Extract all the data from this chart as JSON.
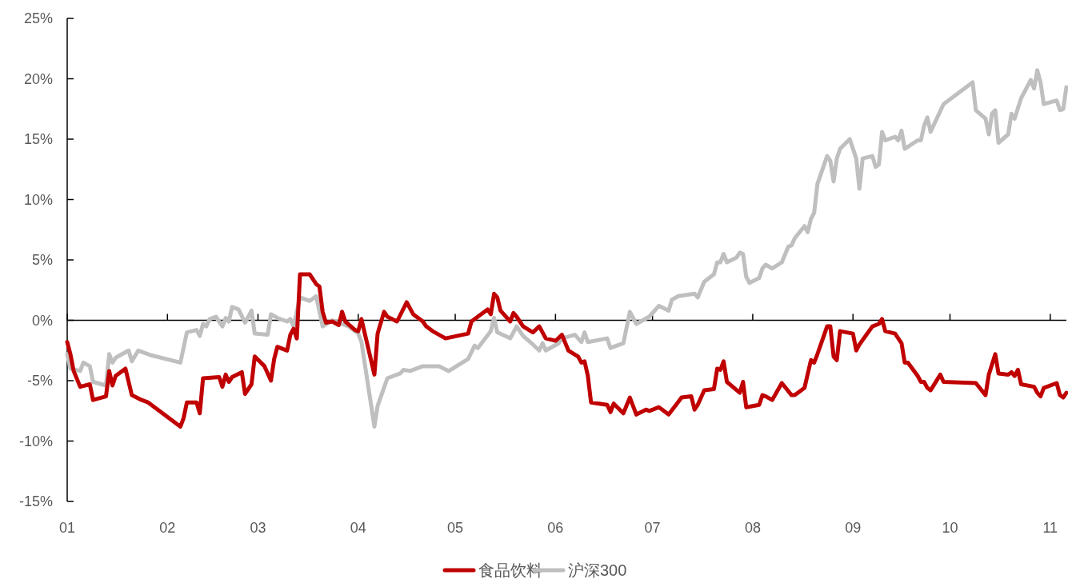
{
  "chart_data": {
    "type": "line",
    "legend": "bottom",
    "xlim": [
      "--01-01",
      "--11-06"
    ],
    "xticks": [
      {
        "value": "--01-01",
        "label": "01"
      },
      {
        "value": "--02-01",
        "label": "02"
      },
      {
        "value": "--03-01",
        "label": "03"
      },
      {
        "value": "--04-01",
        "label": "04"
      },
      {
        "value": "--05-01",
        "label": "05"
      },
      {
        "value": "--06-01",
        "label": "06"
      },
      {
        "value": "--07-01",
        "label": "07"
      },
      {
        "value": "--08-01",
        "label": "08"
      },
      {
        "value": "--09-01",
        "label": "09"
      },
      {
        "value": "--10-01",
        "label": "10"
      },
      {
        "value": "--11-01",
        "label": "11"
      }
    ],
    "ylim": [
      -15,
      25
    ],
    "yticks": [
      {
        "value": -15,
        "label": "-15%"
      },
      {
        "value": -10,
        "label": "-10%"
      },
      {
        "value": -5,
        "label": "-5%"
      },
      {
        "value": 0,
        "label": "0%"
      },
      {
        "value": 5,
        "label": "5%"
      },
      {
        "value": 10,
        "label": "10%"
      },
      {
        "value": 15,
        "label": "15%"
      },
      {
        "value": 20,
        "label": "20%"
      },
      {
        "value": 25,
        "label": "25%"
      }
    ],
    "series": [
      {
        "name": "食品饮料",
        "color": "#c00000",
        "x": [
          "--01-01",
          "--01-02",
          "--01-03",
          "--01-05",
          "--01-08",
          "--01-09",
          "--01-13",
          "--01-14",
          "--01-15",
          "--01-16",
          "--01-19",
          "--01-21",
          "--01-24",
          "--01-26",
          "--02-05",
          "--02-06",
          "--02-07",
          "--02-10",
          "--02-11",
          "--02-12",
          "--02-17",
          "--02-18",
          "--02-19",
          "--02-20",
          "--02-21",
          "--02-24",
          "--02-25",
          "--02-27",
          "--02-28",
          "--03-03",
          "--03-05",
          "--03-06",
          "--03-07",
          "--03-10",
          "--03-11",
          "--03-12",
          "--03-13",
          "--03-14",
          "--03-17",
          "--03-19",
          "--03-20",
          "--03-21",
          "--03-22",
          "--03-24",
          "--03-26",
          "--03-27",
          "--03-28",
          "--03-31",
          "--04-01",
          "--04-02",
          "--04-06",
          "--04-07",
          "--04-09",
          "--04-10",
          "--04-13",
          "--04-16",
          "--04-18",
          "--04-21",
          "--04-22",
          "--04-24",
          "--04-28",
          "--05-05",
          "--05-06",
          "--05-08",
          "--05-11",
          "--05-12",
          "--05-13",
          "--05-14",
          "--05-15",
          "--05-18",
          "--05-19",
          "--05-20",
          "--05-22",
          "--05-25",
          "--05-27",
          "--05-29",
          "--06-01",
          "--06-03",
          "--06-05",
          "--06-08",
          "--06-09",
          "--06-10",
          "--06-11",
          "--06-12",
          "--06-17",
          "--06-18",
          "--06-19",
          "--06-22",
          "--06-24",
          "--06-26",
          "--06-29",
          "--06-30",
          "--07-03",
          "--07-06",
          "--07-08",
          "--07-10",
          "--07-13",
          "--07-14",
          "--07-15",
          "--07-17",
          "--07-20",
          "--07-21",
          "--07-22",
          "--07-23",
          "--07-24",
          "--07-28",
          "--07-29",
          "--07-30",
          "--08-03",
          "--08-04",
          "--08-05",
          "--08-07",
          "--08-10",
          "--08-13",
          "--08-14",
          "--08-17",
          "--08-19",
          "--08-20",
          "--08-21",
          "--08-24",
          "--08-25",
          "--08-26",
          "--08-27",
          "--08-28",
          "--09-01",
          "--09-02",
          "--09-03",
          "--09-07",
          "--09-09",
          "--09-10",
          "--09-11",
          "--09-14",
          "--09-16",
          "--09-17",
          "--09-18",
          "--09-21",
          "--09-22",
          "--09-23",
          "--09-24",
          "--09-25",
          "--09-28",
          "--09-29",
          "--10-09",
          "--10-12",
          "--10-13",
          "--10-15",
          "--10-16",
          "--10-19",
          "--10-20",
          "--10-21",
          "--10-22",
          "--10-23",
          "--10-27",
          "--10-28",
          "--10-29",
          "--10-30",
          "--11-03",
          "--11-04",
          "--11-05",
          "--11-06"
        ],
        "values": [
          -1.8,
          -2.8,
          -4.2,
          -5.5,
          -5.3,
          -6.6,
          -6.3,
          -4.2,
          -5.4,
          -4.6,
          -4.0,
          -6.2,
          -6.6,
          -6.8,
          -8.8,
          -8.1,
          -6.8,
          -6.8,
          -7.7,
          -4.8,
          -4.7,
          -5.5,
          -4.5,
          -5.1,
          -4.7,
          -4.3,
          -6.1,
          -5.3,
          -3.0,
          -3.8,
          -5.0,
          -3.2,
          -2.2,
          -2.5,
          -1.2,
          -0.7,
          -1.5,
          3.8,
          3.8,
          3.0,
          2.8,
          0.7,
          -0.2,
          -0.1,
          -0.4,
          0.7,
          -0.1,
          -0.8,
          -0.9,
          0.1,
          -4.5,
          -1.1,
          0.7,
          0.3,
          -0.1,
          1.5,
          0.5,
          -0.1,
          -0.5,
          -0.9,
          -1.5,
          -1.1,
          -0.1,
          0.3,
          0.9,
          0.5,
          2.2,
          1.9,
          0.8,
          -0.1,
          0.6,
          0.3,
          -0.5,
          -1.0,
          -0.5,
          -1.5,
          -1.7,
          -1.2,
          -2.5,
          -3.0,
          -3.5,
          -3.4,
          -4.6,
          -6.8,
          -7.0,
          -7.6,
          -6.9,
          -7.7,
          -6.4,
          -7.8,
          -7.4,
          -7.5,
          -7.2,
          -7.8,
          -7.1,
          -6.4,
          -6.3,
          -7.4,
          -7.0,
          -5.8,
          -5.7,
          -4.0,
          -4.1,
          -3.4,
          -5.1,
          -6.0,
          -5.1,
          -7.2,
          -7.0,
          -6.2,
          -6.3,
          -6.6,
          -5.2,
          -6.2,
          -6.2,
          -5.6,
          -3.3,
          -3.5,
          -2.8,
          -0.5,
          -0.5,
          -3.0,
          -3.3,
          -0.9,
          -1.1,
          -2.5,
          -2.0,
          -0.5,
          -0.3,
          0.1,
          -0.9,
          -1.1,
          -1.9,
          -3.5,
          -3.5,
          -4.6,
          -5.1,
          -5.1,
          -5.6,
          -5.8,
          -4.5,
          -5.1,
          -5.2,
          -6.2,
          -4.5,
          -2.8,
          -4.4,
          -4.5,
          -4.3,
          -4.6,
          -4.1,
          -5.3,
          -5.5,
          -6.0,
          -6.3,
          -5.6,
          -5.2,
          -6.2,
          -6.4,
          -6.0
        ]
      },
      {
        "name": "沪深300",
        "color": "#bfbfbf",
        "x": [
          "--01-01",
          "--01-02",
          "--01-05",
          "--01-06",
          "--01-08",
          "--01-09",
          "--01-13",
          "--01-14",
          "--01-15",
          "--01-16",
          "--01-20",
          "--01-21",
          "--01-23",
          "--01-27",
          "--02-05",
          "--02-07",
          "--02-10",
          "--02-11",
          "--02-12",
          "--02-13",
          "--02-14",
          "--02-16",
          "--02-18",
          "--02-19",
          "--02-20",
          "--02-21",
          "--02-23",
          "--02-25",
          "--02-27",
          "--02-28",
          "--03-04",
          "--03-05",
          "--03-07",
          "--03-10",
          "--03-11",
          "--03-12",
          "--03-14",
          "--03-17",
          "--03-19",
          "--03-21",
          "--03-24",
          "--03-27",
          "--03-29",
          "--03-31",
          "--04-01",
          "--04-02",
          "--04-06",
          "--04-07",
          "--04-10",
          "--04-14",
          "--04-15",
          "--04-17",
          "--04-21",
          "--04-23",
          "--04-26",
          "--04-29",
          "--05-05",
          "--05-07",
          "--05-08",
          "--05-12",
          "--05-13",
          "--05-14",
          "--05-18",
          "--05-20",
          "--05-22",
          "--05-25",
          "--05-27",
          "--05-28",
          "--05-29",
          "--06-02",
          "--06-03",
          "--06-07",
          "--06-09",
          "--06-10",
          "--06-11",
          "--06-17",
          "--06-18",
          "--06-22",
          "--06-24",
          "--06-26",
          "--06-30",
          "--07-03",
          "--07-06",
          "--07-07",
          "--07-09",
          "--07-14",
          "--07-15",
          "--07-17",
          "--07-20",
          "--07-21",
          "--07-22",
          "--07-23",
          "--07-24",
          "--07-27",
          "--07-28",
          "--07-29",
          "--07-30",
          "--07-31",
          "--08-03",
          "--08-04",
          "--08-05",
          "--08-07",
          "--08-10",
          "--08-12",
          "--08-13",
          "--08-14",
          "--08-17",
          "--08-18",
          "--08-19",
          "--08-20",
          "--08-21",
          "--08-24",
          "--08-25",
          "--08-26",
          "--08-27",
          "--08-28",
          "--08-31",
          "--09-02",
          "--09-03",
          "--09-04",
          "--09-07",
          "--09-08",
          "--09-09",
          "--09-10",
          "--09-11",
          "--09-14",
          "--09-15",
          "--09-16",
          "--09-17",
          "--09-21",
          "--09-22",
          "--09-23",
          "--09-24",
          "--09-25",
          "--09-29",
          "--10-08",
          "--10-09",
          "--10-12",
          "--10-13",
          "--10-14",
          "--10-15",
          "--10-16",
          "--10-19",
          "--10-20",
          "--10-21",
          "--10-23",
          "--10-26",
          "--10-27",
          "--10-28",
          "--10-29",
          "--10-30",
          "--11-03",
          "--11-04",
          "--11-05",
          "--11-06"
        ],
        "values": [
          -2.8,
          -4.0,
          -4.2,
          -3.5,
          -3.8,
          -5.1,
          -5.4,
          -2.8,
          -3.5,
          -3.1,
          -2.5,
          -3.4,
          -2.5,
          -2.9,
          -3.5,
          -1.0,
          -0.8,
          -1.3,
          -0.3,
          -0.5,
          0.1,
          0.3,
          -0.5,
          0.2,
          -0.1,
          1.1,
          0.9,
          -0.2,
          0.8,
          -1.1,
          -1.2,
          0.5,
          0.2,
          -0.1,
          0.1,
          -0.5,
          1.9,
          1.6,
          2.0,
          -0.5,
          0.0,
          -0.3,
          -0.5,
          -0.9,
          -1.1,
          -1.8,
          -8.8,
          -7.1,
          -4.8,
          -4.4,
          -4.1,
          -4.2,
          -3.8,
          -3.8,
          -3.8,
          -4.2,
          -3.2,
          -2.1,
          -2.3,
          -0.9,
          0.2,
          -1.0,
          -1.5,
          -0.5,
          -1.3,
          -2.0,
          -2.5,
          -1.9,
          -2.5,
          -1.9,
          -1.5,
          -1.2,
          -1.8,
          -1.0,
          -1.8,
          -1.5,
          -2.3,
          -1.9,
          0.7,
          -0.3,
          0.3,
          1.2,
          0.8,
          1.7,
          2.0,
          2.2,
          1.9,
          3.2,
          3.8,
          4.8,
          4.8,
          5.5,
          4.8,
          5.2,
          5.6,
          5.5,
          3.6,
          3.1,
          3.5,
          4.3,
          4.6,
          4.3,
          4.8,
          6.1,
          6.2,
          6.8,
          7.8,
          7.3,
          8.4,
          8.9,
          11.3,
          13.6,
          13.2,
          11.5,
          13.4,
          14.2,
          15.0,
          13.4,
          10.9,
          13.4,
          13.6,
          12.7,
          12.9,
          15.6,
          14.9,
          15.2,
          14.9,
          15.7,
          14.2,
          14.9,
          14.9,
          16.1,
          16.8,
          15.6,
          17.9,
          19.7,
          17.4,
          16.7,
          15.4,
          17.1,
          17.4,
          14.7,
          15.4,
          17.1,
          16.7,
          18.4,
          19.9,
          19.2,
          20.7,
          19.7,
          17.9,
          18.2,
          17.4,
          17.5,
          19.3
        ]
      }
    ]
  }
}
